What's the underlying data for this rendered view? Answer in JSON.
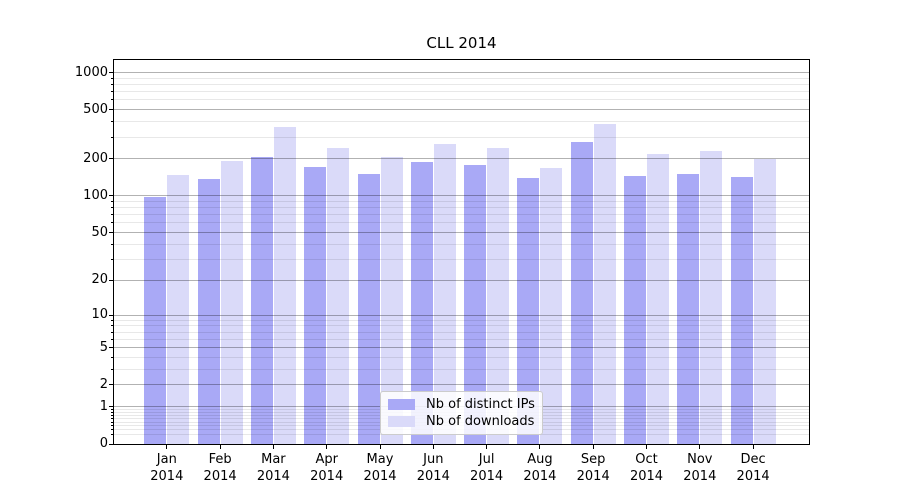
{
  "chart_data": {
    "type": "bar",
    "title": "CLL 2014",
    "categories": [
      "Jan",
      "Feb",
      "Mar",
      "Apr",
      "May",
      "Jun",
      "Jul",
      "Aug",
      "Sep",
      "Oct",
      "Nov",
      "Dec"
    ],
    "category_year": "2014",
    "series": [
      {
        "name": "Nb of distinct IPs",
        "color": "#a9a9f6",
        "values": [
          98,
          136,
          208,
          173,
          151,
          188,
          177,
          139,
          276,
          146,
          151,
          143
        ]
      },
      {
        "name": "Nb of downloads",
        "color": "#dadaf9",
        "values": [
          148,
          192,
          361,
          245,
          206,
          263,
          245,
          168,
          382,
          219,
          232,
          201
        ]
      }
    ],
    "yscale": "log10(value+1)",
    "yticks": [
      0,
      1,
      2,
      5,
      10,
      20,
      50,
      100,
      200,
      500,
      1000
    ],
    "yminor_gridlines": [
      0.2,
      0.3,
      0.4,
      0.5,
      0.6,
      0.7,
      0.8,
      0.9,
      3,
      4,
      6,
      7,
      8,
      9,
      30,
      40,
      60,
      70,
      80,
      90,
      300,
      400,
      600,
      700,
      800,
      900
    ],
    "ylim": [
      0,
      1262
    ],
    "xlabel": "",
    "ylabel": "",
    "grid": "horizontal, major and minor, drawn over bars",
    "legend_position": "lower center inside plot"
  }
}
